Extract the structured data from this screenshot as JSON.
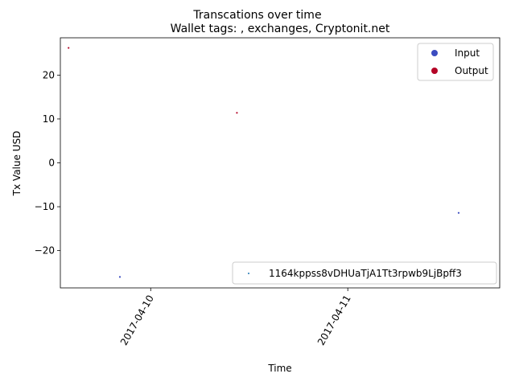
{
  "chart_data": {
    "type": "scatter",
    "suptitle": "Transcations over time",
    "title": "Wallet tags: , exchanges, Cryptonit.net",
    "xlabel": "Time",
    "ylabel": "Tx Value USD",
    "xlim": [
      "2017-04-09T13:00",
      "2017-04-11T18:30"
    ],
    "ylim": [
      -28.5,
      28.5
    ],
    "x_ticks": [
      {
        "value": "2017-04-10T00:00",
        "label": "2017-04-10"
      },
      {
        "value": "2017-04-11T00:00",
        "label": "2017-04-11"
      }
    ],
    "y_ticks": [
      {
        "value": 20,
        "label": "20"
      },
      {
        "value": 10,
        "label": "10"
      },
      {
        "value": 0,
        "label": "0"
      },
      {
        "value": -10,
        "label": "−10"
      },
      {
        "value": -20,
        "label": "−20"
      }
    ],
    "legend_placement": "upper right",
    "legend_entries": [
      {
        "label": "Input",
        "color": "#3b4cc0"
      },
      {
        "label": "Output",
        "color": "#b40426"
      }
    ],
    "address_legend_placement": "lower right",
    "address_legend": {
      "label": "1164kppss8vDHUaTjA1Tt3rpwb9LjBpff3",
      "color": "#1f77b4"
    },
    "series": [
      {
        "name": "Input",
        "color": "#3b4cc0",
        "points": [
          {
            "x": "2017-04-09T20:15",
            "y": -26
          },
          {
            "x": "2017-04-11T13:30",
            "y": -11.4
          }
        ]
      },
      {
        "name": "Output",
        "color": "#b40426",
        "points": [
          {
            "x": "2017-04-09T14:00",
            "y": 26.2
          },
          {
            "x": "2017-04-10T10:30",
            "y": 11.4
          }
        ]
      }
    ]
  }
}
